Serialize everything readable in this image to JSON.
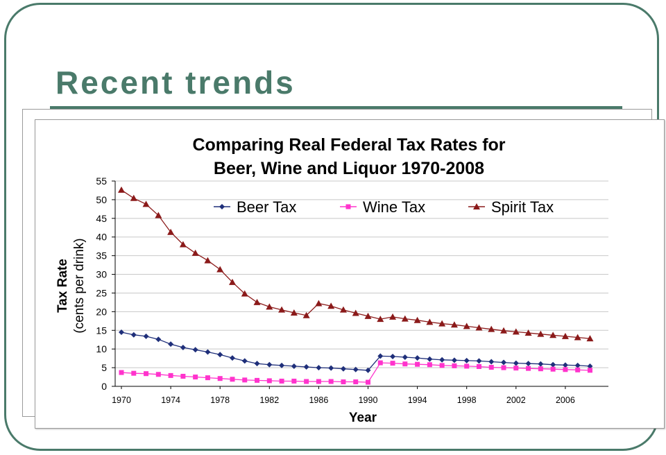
{
  "slide": {
    "title": "Recent trends"
  },
  "colors": {
    "accent": "#4a7a6a",
    "beer": "#1f2f7a",
    "wine": "#ff33cc",
    "spirit": "#8b1a1a",
    "grid": "#c8c8c8"
  },
  "chart_data": {
    "type": "line",
    "title": "Comparing Real Federal Tax Rates for Beer, Wine and Liquor 1970-2008",
    "title_lines": [
      "Comparing Real Federal Tax Rates for",
      "Beer, Wine and Liquor 1970-2008"
    ],
    "xlabel": "Year",
    "ylabel_lines": [
      "Tax Rate",
      "(cents per drink)"
    ],
    "ylim": [
      0,
      55
    ],
    "yticks": [
      0,
      5,
      10,
      15,
      20,
      25,
      30,
      35,
      40,
      45,
      50,
      55
    ],
    "x": [
      1970,
      1971,
      1972,
      1973,
      1974,
      1975,
      1976,
      1977,
      1978,
      1979,
      1980,
      1981,
      1982,
      1983,
      1984,
      1985,
      1986,
      1987,
      1988,
      1989,
      1990,
      1991,
      1992,
      1993,
      1994,
      1995,
      1996,
      1997,
      1998,
      1999,
      2000,
      2001,
      2002,
      2003,
      2004,
      2005,
      2006,
      2007,
      2008
    ],
    "xtick_labels": [
      "1970",
      "1974",
      "1978",
      "1982",
      "1986",
      "1990",
      "1994",
      "1998",
      "2002",
      "2006"
    ],
    "grid": true,
    "legend_position": "top",
    "series": [
      {
        "name": "Beer Tax",
        "marker": "diamond",
        "values": [
          14.5,
          13.8,
          13.4,
          12.6,
          11.3,
          10.4,
          9.8,
          9.2,
          8.5,
          7.6,
          6.8,
          6.1,
          5.8,
          5.6,
          5.4,
          5.2,
          5.0,
          4.9,
          4.7,
          4.5,
          4.3,
          8.1,
          8.0,
          7.8,
          7.6,
          7.3,
          7.1,
          7.0,
          6.9,
          6.8,
          6.6,
          6.4,
          6.2,
          6.1,
          6.0,
          5.8,
          5.7,
          5.6,
          5.4
        ]
      },
      {
        "name": "Wine Tax",
        "marker": "square",
        "values": [
          3.7,
          3.5,
          3.4,
          3.2,
          2.9,
          2.7,
          2.5,
          2.3,
          2.1,
          1.9,
          1.7,
          1.6,
          1.5,
          1.4,
          1.4,
          1.3,
          1.3,
          1.3,
          1.2,
          1.2,
          1.1,
          6.3,
          6.2,
          6.0,
          5.9,
          5.8,
          5.6,
          5.5,
          5.4,
          5.3,
          5.1,
          5.0,
          4.9,
          4.8,
          4.7,
          4.6,
          4.5,
          4.4,
          4.3
        ]
      },
      {
        "name": "Spirit Tax",
        "marker": "triangle",
        "values": [
          52.6,
          50.4,
          48.8,
          45.8,
          41.3,
          38.0,
          35.7,
          33.7,
          31.3,
          27.9,
          24.8,
          22.5,
          21.3,
          20.5,
          19.7,
          19.0,
          22.2,
          21.5,
          20.5,
          19.6,
          18.8,
          18.0,
          18.6,
          18.1,
          17.7,
          17.2,
          16.8,
          16.5,
          16.1,
          15.7,
          15.3,
          14.9,
          14.6,
          14.3,
          14.0,
          13.7,
          13.4,
          13.1,
          12.8
        ]
      }
    ]
  }
}
